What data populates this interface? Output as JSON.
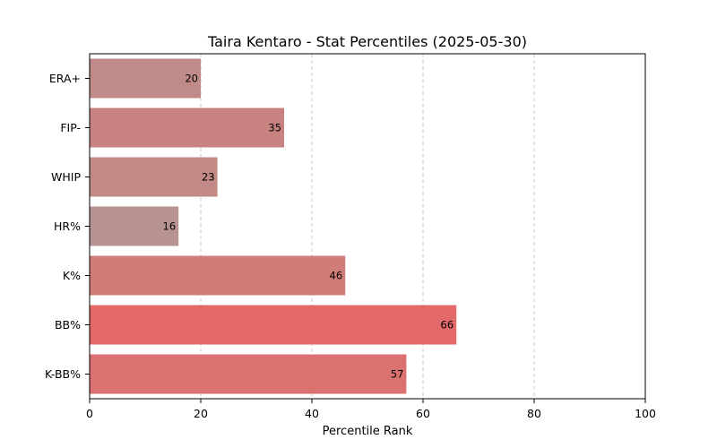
{
  "chart_data": {
    "type": "bar",
    "orientation": "horizontal",
    "title": "Taira Kentaro - Stat Percentiles (2025-05-30)",
    "xlabel": "Percentile Rank",
    "ylabel": "",
    "xlim": [
      0,
      100
    ],
    "xticks": [
      0,
      20,
      40,
      60,
      80,
      100
    ],
    "grid": "vertical dashed",
    "categories": [
      "ERA+",
      "FIP-",
      "WHIP",
      "HR%",
      "K%",
      "BB%",
      "K-BB%"
    ],
    "values": [
      20,
      35,
      23,
      16,
      46,
      66,
      57
    ],
    "colors": [
      "#bf8a88",
      "#c88380",
      "#c28a86",
      "#b79491",
      "#d07c78",
      "#e36a69",
      "#db726f"
    ]
  }
}
